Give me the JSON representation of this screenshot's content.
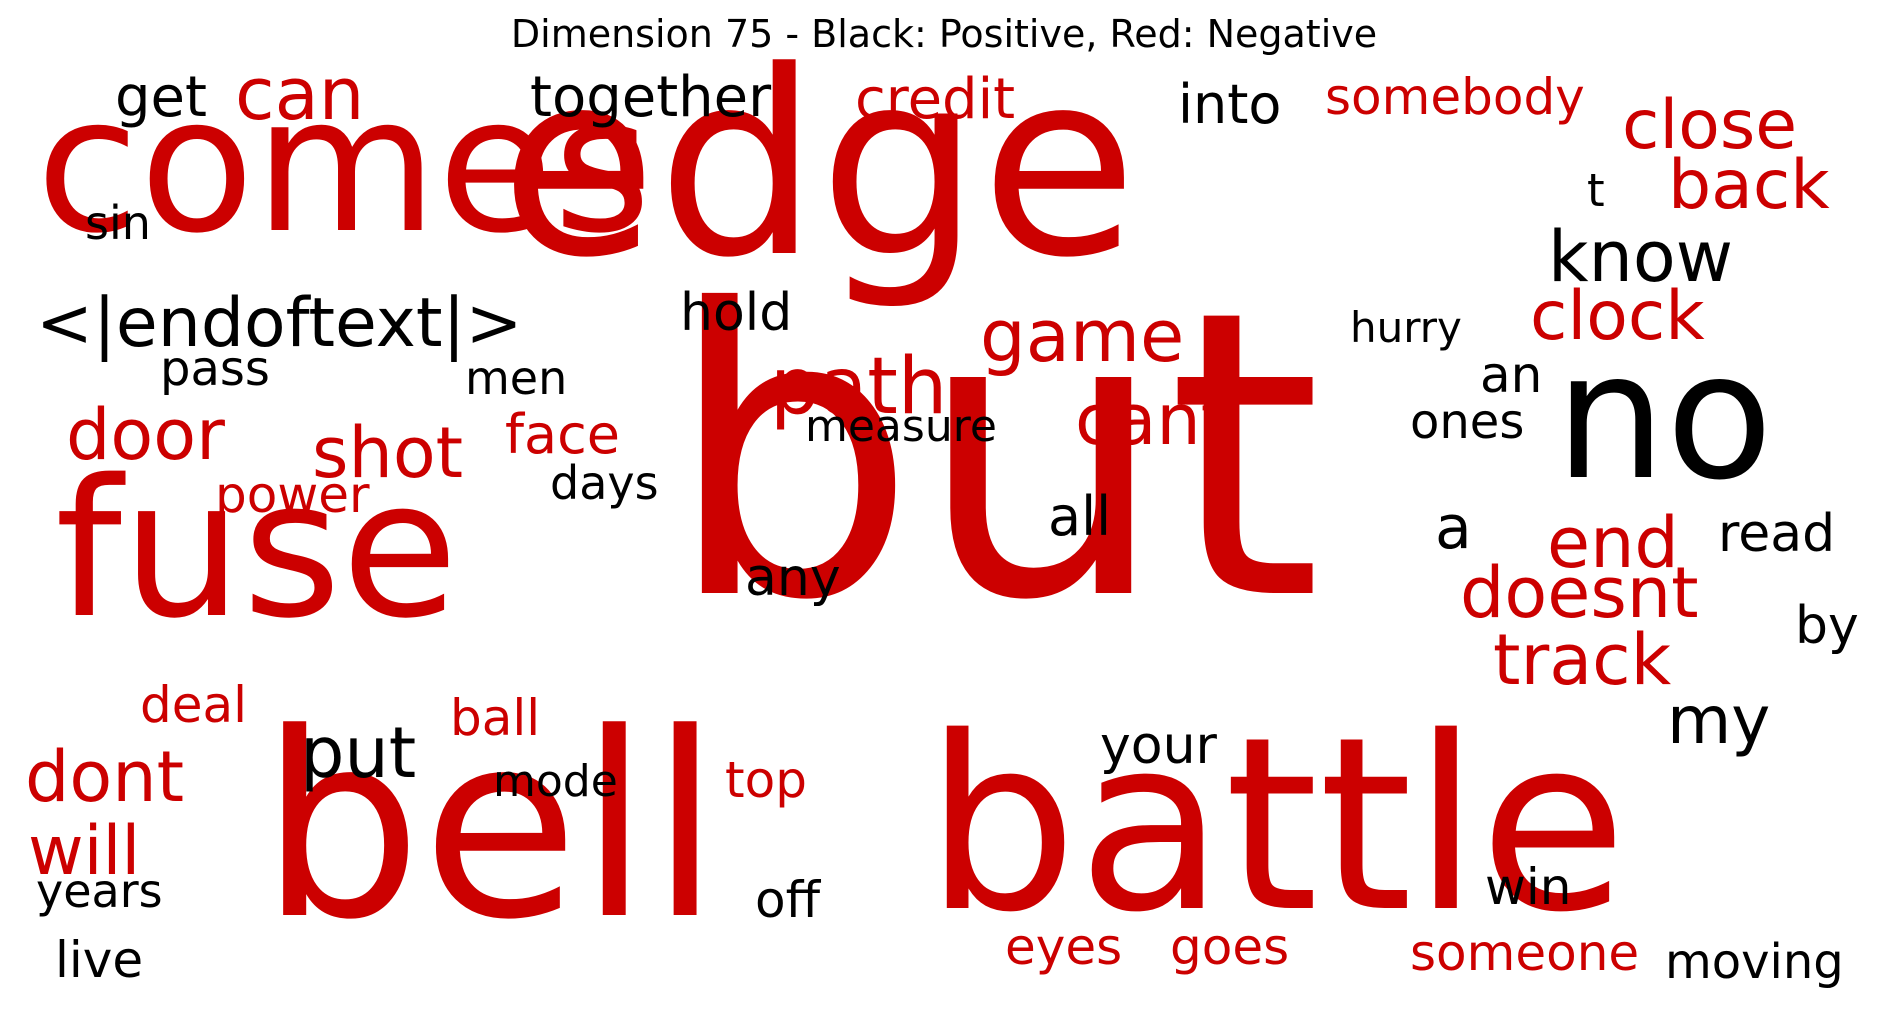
{
  "title": "Dimension 75 - Black: Positive, Red: Negative",
  "colors": {
    "positive": "#000000",
    "negative": "#cc0000"
  },
  "words": [
    {
      "text": "comes",
      "polarity": "negative",
      "weight": 190
    },
    {
      "text": "edge",
      "polarity": "negative",
      "weight": 255
    },
    {
      "text": "but",
      "polarity": "negative",
      "weight": 395
    },
    {
      "text": "bell",
      "polarity": "negative",
      "weight": 255
    },
    {
      "text": "battle",
      "polarity": "negative",
      "weight": 240
    },
    {
      "text": "fuse",
      "polarity": "negative",
      "weight": 190
    },
    {
      "text": "no",
      "polarity": "positive",
      "weight": 175
    },
    {
      "text": "can",
      "polarity": "negative",
      "weight": 72
    },
    {
      "text": "get",
      "polarity": "positive",
      "weight": 56
    },
    {
      "text": "together",
      "polarity": "positive",
      "weight": 56
    },
    {
      "text": "credit",
      "polarity": "negative",
      "weight": 56
    },
    {
      "text": "into",
      "polarity": "positive",
      "weight": 54
    },
    {
      "text": "somebody",
      "polarity": "negative",
      "weight": 50
    },
    {
      "text": "close",
      "polarity": "negative",
      "weight": 68
    },
    {
      "text": "back",
      "polarity": "negative",
      "weight": 68
    },
    {
      "text": "t",
      "polarity": "positive",
      "weight": 45
    },
    {
      "text": "sin",
      "polarity": "positive",
      "weight": 46
    },
    {
      "text": "know",
      "polarity": "positive",
      "weight": 70
    },
    {
      "text": "<|endoftext|>",
      "polarity": "positive",
      "weight": 68
    },
    {
      "text": "hold",
      "polarity": "positive",
      "weight": 52
    },
    {
      "text": "game",
      "polarity": "negative",
      "weight": 72
    },
    {
      "text": "hurry",
      "polarity": "positive",
      "weight": 42
    },
    {
      "text": "clock",
      "polarity": "negative",
      "weight": 68
    },
    {
      "text": "pass",
      "polarity": "positive",
      "weight": 48
    },
    {
      "text": "path",
      "polarity": "negative",
      "weight": 78
    },
    {
      "text": "men",
      "polarity": "positive",
      "weight": 46
    },
    {
      "text": "an",
      "polarity": "positive",
      "weight": 50
    },
    {
      "text": "door",
      "polarity": "negative",
      "weight": 70
    },
    {
      "text": "shot",
      "polarity": "negative",
      "weight": 70
    },
    {
      "text": "face",
      "polarity": "negative",
      "weight": 54
    },
    {
      "text": "measure",
      "polarity": "positive",
      "weight": 44
    },
    {
      "text": "cant",
      "polarity": "negative",
      "weight": 70
    },
    {
      "text": "ones",
      "polarity": "positive",
      "weight": 48
    },
    {
      "text": "power",
      "polarity": "negative",
      "weight": 50
    },
    {
      "text": "days",
      "polarity": "positive",
      "weight": 46
    },
    {
      "text": "all",
      "polarity": "positive",
      "weight": 54
    },
    {
      "text": "a",
      "polarity": "positive",
      "weight": 60
    },
    {
      "text": "end",
      "polarity": "negative",
      "weight": 70
    },
    {
      "text": "read",
      "polarity": "positive",
      "weight": 52
    },
    {
      "text": "any",
      "polarity": "positive",
      "weight": 52
    },
    {
      "text": "doesnt",
      "polarity": "negative",
      "weight": 70
    },
    {
      "text": "by",
      "polarity": "positive",
      "weight": 52
    },
    {
      "text": "track",
      "polarity": "negative",
      "weight": 70
    },
    {
      "text": "deal",
      "polarity": "negative",
      "weight": 50
    },
    {
      "text": "ball",
      "polarity": "negative",
      "weight": 50
    },
    {
      "text": "my",
      "polarity": "positive",
      "weight": 66
    },
    {
      "text": "put",
      "polarity": "positive",
      "weight": 70
    },
    {
      "text": "your",
      "polarity": "positive",
      "weight": 52
    },
    {
      "text": "dont",
      "polarity": "negative",
      "weight": 70
    },
    {
      "text": "mode",
      "polarity": "positive",
      "weight": 44
    },
    {
      "text": "top",
      "polarity": "negative",
      "weight": 50
    },
    {
      "text": "will",
      "polarity": "negative",
      "weight": 68
    },
    {
      "text": "years",
      "polarity": "positive",
      "weight": 46
    },
    {
      "text": "off",
      "polarity": "positive",
      "weight": 50
    },
    {
      "text": "win",
      "polarity": "positive",
      "weight": 50
    },
    {
      "text": "live",
      "polarity": "positive",
      "weight": 50
    },
    {
      "text": "eyes",
      "polarity": "negative",
      "weight": 50
    },
    {
      "text": "goes",
      "polarity": "negative",
      "weight": 50
    },
    {
      "text": "someone",
      "polarity": "negative",
      "weight": 50
    },
    {
      "text": "moving",
      "polarity": "positive",
      "weight": 48
    }
  ]
}
